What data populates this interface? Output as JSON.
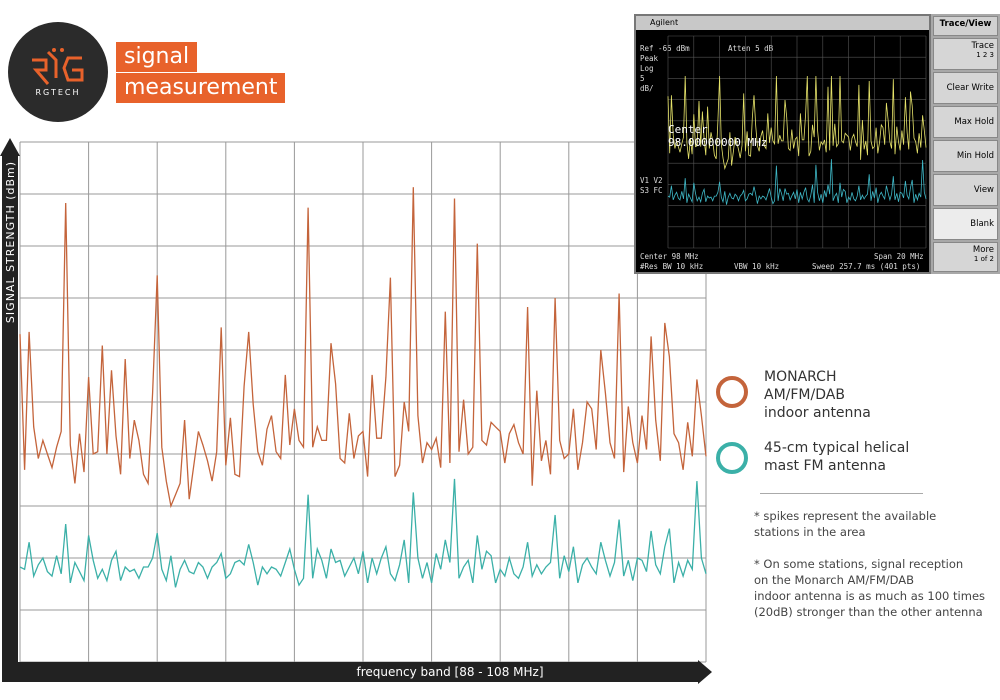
{
  "logo": {
    "brand": "RGTECH"
  },
  "title": {
    "line1": "signal",
    "line2": "measurement"
  },
  "chart_data": {
    "type": "line",
    "xlabel": "frequency band [88 - 108 MHz]",
    "ylabel": "SIGNAL STRENGTH (dBm)",
    "x": [
      0,
      1,
      2,
      3,
      4,
      5,
      6,
      7,
      8,
      9,
      10,
      11,
      12,
      13,
      14,
      15,
      16,
      17,
      18,
      19,
      20,
      21,
      22,
      23,
      24,
      25,
      26,
      27,
      28,
      29,
      30,
      31,
      32,
      33,
      34,
      35,
      36,
      37,
      38,
      39,
      40,
      41,
      42,
      43,
      44,
      45,
      46,
      47,
      48,
      49,
      50,
      51,
      52,
      53,
      54,
      55,
      56,
      57,
      58,
      59,
      60,
      61,
      62,
      63,
      64,
      65,
      66,
      67,
      68,
      69,
      70,
      71,
      72,
      73,
      74,
      75,
      76,
      77,
      78,
      79,
      80,
      81,
      82,
      83,
      84,
      85,
      86,
      87,
      88,
      89,
      90,
      91,
      92,
      93,
      94,
      95,
      96,
      97,
      98,
      99,
      100,
      101,
      102,
      103,
      104,
      105,
      106,
      107,
      108,
      109,
      110,
      111,
      112,
      113,
      114,
      115,
      116,
      117,
      118,
      119,
      120,
      121,
      122,
      123,
      124,
      125,
      126,
      127,
      128,
      129,
      130,
      131,
      132,
      133,
      134,
      135,
      136,
      137,
      138,
      139,
      140,
      141,
      142,
      143,
      144,
      145,
      146,
      147,
      148,
      149,
      150
    ],
    "series": [
      {
        "name": "MONARCH AM/FM/DAB indoor antenna",
        "color": "#c4643b",
        "values": [
          4.5,
          -1.5,
          4.6,
          0.4,
          -1,
          -0.2,
          -0.8,
          -1.4,
          -0.5,
          0.2,
          10.3,
          -0.4,
          -2.1,
          0.1,
          -1.6,
          2.6,
          -0.8,
          -0.7,
          4,
          -0.8,
          2.9,
          0,
          -1.7,
          3.4,
          -1,
          0.7,
          -0.2,
          -1.7,
          -2.1,
          1.9,
          7.1,
          -0.5,
          -2,
          -3.1,
          -2.6,
          -2.1,
          0.7,
          -2.8,
          -1.3,
          0.2,
          -0.4,
          -1.1,
          -2,
          -0.7,
          4.8,
          -1.3,
          0.8,
          -1.7,
          -1.8,
          2.2,
          4.6,
          1.4,
          -0.7,
          -1.3,
          0.3,
          0.9,
          -0.7,
          -1,
          2.7,
          -0.4,
          1.2,
          -0.2,
          -0.5,
          10.1,
          -0.5,
          0.4,
          -0.2,
          -0.2,
          4.1,
          2.3,
          -1,
          -1.2,
          1,
          -1,
          0,
          0.2,
          -1.8,
          2.7,
          -0.1,
          -0.1,
          2.6,
          7,
          -1.8,
          -1.3,
          1.5,
          0.2,
          11,
          0.9,
          -1.2,
          -0.3,
          -0.6,
          -0.1,
          -1.4,
          5.5,
          -1.2,
          10.5,
          -0.7,
          1.6,
          -0.8,
          -0.5,
          8.5,
          -0.2,
          -0.4,
          0.6,
          0.4,
          0.2,
          -1.2,
          0.1,
          0.5,
          -0.3,
          -0.8,
          5.7,
          -2.2,
          2,
          -1.1,
          -0.2,
          -1.7,
          6.1,
          -0.2,
          -1,
          -0.8,
          1.2,
          -1.5,
          -0.3,
          1.5,
          1.2,
          -0.6,
          3.8,
          1.9,
          -0.3,
          -1,
          6.3,
          -1.6,
          1.3,
          -0.3,
          -1.2,
          0.9,
          -0.6,
          4.4,
          0.7,
          -1.1,
          5,
          3.5,
          0.1,
          -0.3,
          -1.5,
          0.6,
          -0.9,
          2.5,
          0.9,
          -0.9
        ]
      },
      {
        "name": "45-cm typical helical mast FM antenna",
        "color": "#3bb0a8",
        "values": [
          -5.8,
          -5.9,
          -4.7,
          -6.2,
          -5.7,
          -5.4,
          -6,
          -6.2,
          -5.3,
          -6.1,
          -3.9,
          -6.5,
          -5.6,
          -6,
          -6.4,
          -4.4,
          -5.5,
          -6.3,
          -5.9,
          -6.4,
          -5.5,
          -5.1,
          -6.4,
          -5.8,
          -6,
          -5.9,
          -6.3,
          -5.8,
          -5.8,
          -5.4,
          -4.3,
          -5.9,
          -6.4,
          -5.3,
          -6.7,
          -5.9,
          -5.5,
          -6,
          -6.1,
          -5.6,
          -5.8,
          -6.3,
          -5.8,
          -5.6,
          -5.2,
          -6.3,
          -6.1,
          -5.6,
          -5.5,
          -5.7,
          -4.8,
          -5.6,
          -6.6,
          -5.8,
          -6.1,
          -5.8,
          -5.9,
          -6.2,
          -5.6,
          -5,
          -5.9,
          -6.6,
          -6.3,
          -2.6,
          -6.3,
          -5,
          -5.5,
          -6.3,
          -5,
          -5.6,
          -5.5,
          -6.2,
          -5.8,
          -5.4,
          -6.1,
          -5.1,
          -6.5,
          -5.4,
          -6.1,
          -5.4,
          -4.9,
          -6.1,
          -6.4,
          -5.7,
          -4.6,
          -6.5,
          -2.5,
          -5.4,
          -6.3,
          -5.6,
          -6.5,
          -5.2,
          -5.9,
          -4.6,
          -5.6,
          -1.9,
          -6.3,
          -5.8,
          -5.5,
          -6.5,
          -4.4,
          -5.9,
          -5.1,
          -5.3,
          -6.5,
          -5.9,
          -6.2,
          -5.4,
          -6.1,
          -6.3,
          -5.8,
          -4.7,
          -6.2,
          -5.7,
          -6.1,
          -5.8,
          -5.6,
          -3.5,
          -6.3,
          -5.3,
          -6,
          -4.9,
          -6.5,
          -5.7,
          -5.4,
          -5.8,
          -6.1,
          -4.7,
          -5.5,
          -6.2,
          -5.6,
          -3.7,
          -6.2,
          -5.5,
          -6.4,
          -5.4,
          -5.5,
          -6,
          -4.2,
          -5.7,
          -6.1,
          -4.9,
          -4.1,
          -6.5,
          -5.6,
          -6.2,
          -5.5,
          -5.9,
          -2,
          -5.4,
          -6.1
        ]
      }
    ],
    "grid": true
  },
  "legend": {
    "item1": "MONARCH\nAM/FM/DAB\nindoor antenna",
    "item2": "45-cm typical helical\nmast FM antenna"
  },
  "notes": {
    "note1": "* spikes represent the available\n   stations in the area",
    "note2": "* On some stations, signal reception\n   on the Monarch AM/FM/DAB\n   indoor antenna is as much as 100 times\n   (20dB) stronger than the other antenna"
  },
  "analyzer": {
    "brand": "Agilent",
    "ref": "Ref -65 dBm",
    "atten": "Atten 5 dB",
    "peak": "Peak",
    "log": "Log",
    "scale": "5",
    "unit": "dB/",
    "v1v2": "V1 V2",
    "s3fc": "S3 FC",
    "center_label": "Center\n98.00000000 MHz",
    "center": "Center 98 MHz",
    "span": "Span 20 MHz",
    "resbw": "#Res BW 10 kHz",
    "vbw": "VBW 10 kHz",
    "sweep": "Sweep 257.7 ms (401 pts)",
    "softkeys": {
      "title": "Trace/View",
      "trace": "Trace",
      "trace_nums": "1        2        3",
      "clear_write": "Clear Write",
      "max_hold": "Max Hold",
      "min_hold": "Min Hold",
      "view": "View",
      "blank": "Blank",
      "more": "More",
      "more_page": "1 of 2"
    }
  }
}
